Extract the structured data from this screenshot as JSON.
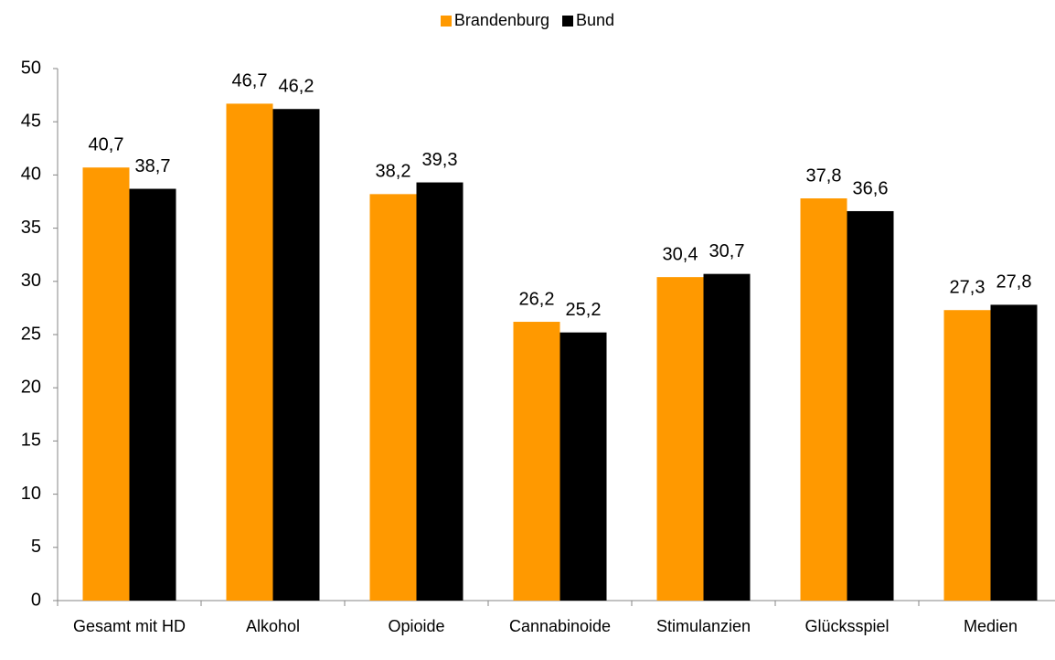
{
  "chart_data": {
    "type": "bar",
    "categories": [
      "Gesamt mit HD",
      "Alkohol",
      "Opioide",
      "Cannabinoide",
      "Stimulanzien",
      "Glücksspiel",
      "Medien"
    ],
    "series": [
      {
        "name": "Brandenburg",
        "color": "#ff9900",
        "values": [
          40.7,
          46.7,
          38.2,
          26.2,
          30.4,
          37.8,
          27.3
        ],
        "value_labels": [
          "40,7",
          "46,7",
          "38,2",
          "26,2",
          "30,4",
          "37,8",
          "27,3"
        ]
      },
      {
        "name": "Bund",
        "color": "#000000",
        "values": [
          38.7,
          46.2,
          39.3,
          25.2,
          30.7,
          36.6,
          27.8
        ],
        "value_labels": [
          "38,7",
          "46,2",
          "39,3",
          "25,2",
          "30,7",
          "36,6",
          "27,8"
        ]
      }
    ],
    "ylim": [
      0,
      50
    ],
    "yticks": [
      0,
      5,
      10,
      15,
      20,
      25,
      30,
      35,
      40,
      45,
      50
    ],
    "legend": "top"
  }
}
